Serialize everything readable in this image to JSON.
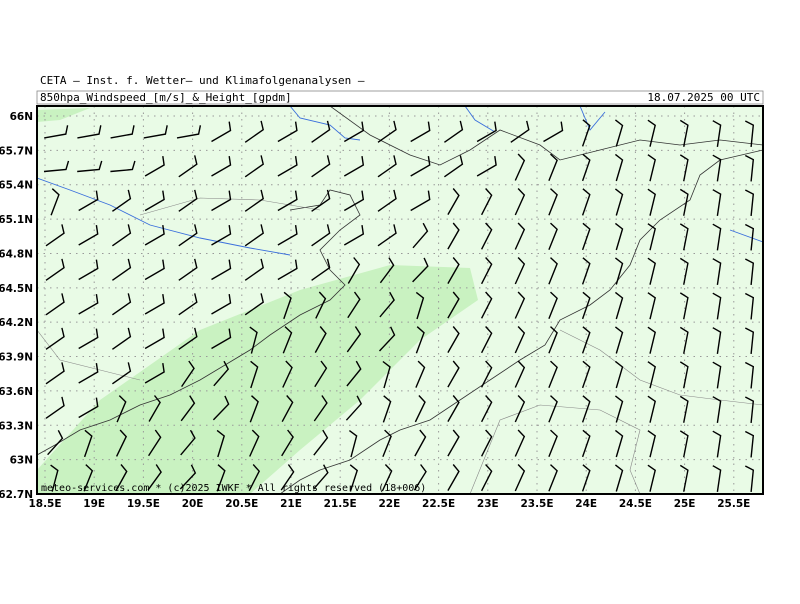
{
  "header": {
    "title": "CETA – Inst. f. Wetter– und Klimafolgenanalysen –",
    "subtitle": "850hpa_Windspeed_[m/s]_&_Height_[gpdm]",
    "valid_time": "18.07.2025 00 UTC"
  },
  "axes": {
    "x_labels": [
      "18.5E",
      "19E",
      "19.5E",
      "20E",
      "20.5E",
      "21E",
      "21.5E",
      "22E",
      "22.5E",
      "23E",
      "23.5E",
      "24E",
      "24.5E",
      "25E",
      "25.5E"
    ],
    "y_labels": [
      "66N",
      "65.7N",
      "65.4N",
      "65.1N",
      "64.8N",
      "64.5N",
      "64.2N",
      "63.9N",
      "63.6N",
      "63.3N",
      "63N",
      "62.7N"
    ]
  },
  "footer": {
    "credit": "meteo-services.com * (c)2025 IWKF * All rights reserved (18+006)"
  }
}
